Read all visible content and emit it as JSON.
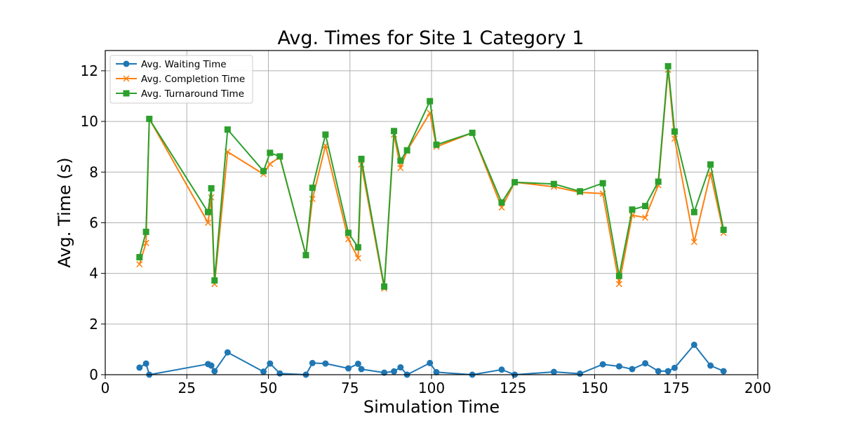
{
  "chart_data": {
    "type": "line",
    "title": "Avg. Times for Site 1 Category 1",
    "xlabel": "Simulation Time",
    "ylabel": "Avg. Time (s)",
    "xlim": [
      0,
      200
    ],
    "ylim": [
      0,
      12.8
    ],
    "xticks": [
      0,
      25,
      50,
      75,
      100,
      125,
      150,
      175,
      200
    ],
    "yticks": [
      0,
      2,
      4,
      6,
      8,
      10,
      12
    ],
    "grid": true,
    "legend_position": "top-left",
    "x": [
      10.5,
      12.5,
      13.5,
      31.5,
      32.5,
      33.5,
      37.5,
      48.5,
      50.5,
      53.5,
      61.5,
      63.5,
      67.5,
      74.5,
      77.5,
      78.5,
      85.5,
      88.5,
      90.5,
      92.5,
      99.5,
      101.5,
      112.5,
      121.5,
      125.5,
      137.5,
      145.5,
      152.5,
      157.5,
      161.5,
      165.5,
      169.5,
      172.5,
      174.5,
      180.5,
      185.5,
      189.5
    ],
    "series": [
      {
        "name": "Avg. Waiting Time",
        "color": "#1f77b4",
        "marker": "circle",
        "values": [
          0.28,
          0.44,
          0.0,
          0.42,
          0.36,
          0.14,
          0.88,
          0.12,
          0.44,
          0.05,
          0.0,
          0.46,
          0.44,
          0.25,
          0.43,
          0.22,
          0.08,
          0.13,
          0.29,
          0.0,
          0.46,
          0.1,
          0.0,
          0.2,
          0.0,
          0.11,
          0.04,
          0.41,
          0.33,
          0.22,
          0.45,
          0.14,
          0.14,
          0.27,
          1.18,
          0.36,
          0.14
        ]
      },
      {
        "name": "Avg. Completion Time",
        "color": "#ff7f0e",
        "marker": "x",
        "values": [
          4.36,
          5.2,
          10.1,
          6.0,
          7.0,
          3.58,
          8.8,
          7.92,
          8.32,
          8.6,
          4.72,
          6.94,
          9.05,
          5.35,
          4.6,
          8.3,
          3.4,
          9.48,
          8.16,
          8.84,
          10.34,
          9.0,
          9.55,
          6.6,
          7.6,
          7.42,
          7.2,
          7.15,
          3.58,
          6.3,
          6.2,
          7.48,
          12.04,
          9.32,
          5.24,
          7.94,
          5.6
        ]
      },
      {
        "name": "Avg. Turnaround Time",
        "color": "#2ca02c",
        "marker": "square",
        "values": [
          4.64,
          5.64,
          10.1,
          6.42,
          7.36,
          3.72,
          9.68,
          8.04,
          8.76,
          8.62,
          4.72,
          7.38,
          9.48,
          5.6,
          5.03,
          8.52,
          3.48,
          9.62,
          8.45,
          8.86,
          10.8,
          9.08,
          9.55,
          6.8,
          7.6,
          7.53,
          7.24,
          7.56,
          3.9,
          6.52,
          6.66,
          7.62,
          12.18,
          9.6,
          6.42,
          8.3,
          5.72
        ]
      }
    ]
  }
}
